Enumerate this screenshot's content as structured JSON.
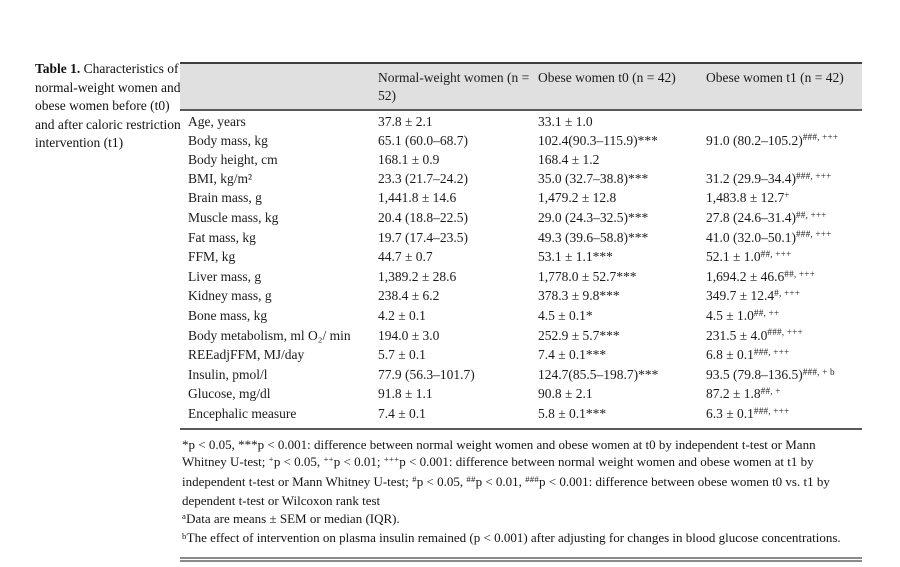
{
  "caption": {
    "label": "Table 1.",
    "text": " Characteristics of normal-weight women and obese women before (t0) and after caloric restriction intervention (t1)"
  },
  "table": {
    "header": {
      "col0": "",
      "col1": "Normal-weight women (n = 52)",
      "col2": "Obese women t0 (n = 42)",
      "col3": "Obese women t1 (n = 42)"
    },
    "rows": [
      {
        "label": "Age, years",
        "nw": "37.8 ± 2.1",
        "t0": "33.1 ± 1.0",
        "t1": "",
        "t1_sup": ""
      },
      {
        "label": "Body mass, kg",
        "nw": "65.1 (60.0–68.7)",
        "t0": "102.4(90.3–115.9)***",
        "t1": "91.0 (80.2–105.2)",
        "t1_sup": "###, +++"
      },
      {
        "label": "Body height, cm",
        "nw": "168.1 ± 0.9",
        "t0": "168.4 ± 1.2",
        "t1": "",
        "t1_sup": ""
      },
      {
        "label": "BMI, kg/m²",
        "nw": "23.3 (21.7–24.2)",
        "t0": "35.0 (32.7–38.8)***",
        "t1": "31.2 (29.9–34.4)",
        "t1_sup": "###, +++"
      },
      {
        "label": "Brain mass, g",
        "nw": "1,441.8 ± 14.6",
        "t0": "1,479.2 ± 12.8",
        "t1": "1,483.8 ± 12.7",
        "t1_sup": "+"
      },
      {
        "label": "Muscle mass, kg",
        "nw": "20.4 (18.8–22.5)",
        "t0": "29.0 (24.3–32.5)***",
        "t1": "27.8 (24.6–31.4)",
        "t1_sup": "##, +++"
      },
      {
        "label": "Fat mass, kg",
        "nw": "19.7 (17.4–23.5)",
        "t0": "49.3 (39.6–58.8)***",
        "t1": "41.0 (32.0–50.1)",
        "t1_sup": "###, +++"
      },
      {
        "label": "FFM, kg",
        "nw": "44.7 ± 0.7",
        "t0": "53.1 ± 1.1***",
        "t1": "52.1 ± 1.0",
        "t1_sup": "##, +++"
      },
      {
        "label": "Liver mass, g",
        "nw": "1,389.2 ± 28.6",
        "t0": "1,778.0 ± 52.7***",
        "t1": "1,694.2 ± 46.6",
        "t1_sup": "##, +++"
      },
      {
        "label": "Kidney mass, g",
        "nw": "238.4 ± 6.2",
        "t0": "378.3 ± 9.8***",
        "t1": "349.7 ± 12.4",
        "t1_sup": "#, +++"
      },
      {
        "label": "Bone mass, kg",
        "nw": "4.2 ± 0.1",
        "t0": "4.5 ± 0.1*",
        "t1": "4.5 ± 1.0",
        "t1_sup": "##, ++"
      },
      {
        "label": "Body metabolism, ml O₂/ min",
        "nw": "194.0 ± 3.0",
        "t0": "252.9 ± 5.7***",
        "t1": "231.5 ± 4.0",
        "t1_sup": "###, +++"
      },
      {
        "label": "REEadjFFM, MJ/day",
        "nw": "5.7 ± 0.1",
        "t0": "7.4 ± 0.1***",
        "t1": "6.8 ± 0.1",
        "t1_sup": "###, +++"
      },
      {
        "label": "Insulin, pmol/l",
        "nw": "77.9 (56.3–101.7)",
        "t0": "124.7(85.5–198.7)***",
        "t1": "93.5 (79.8–136.5)",
        "t1_sup": "###, + b"
      },
      {
        "label": "Glucose, mg/dl",
        "nw": "91.8 ± 1.1",
        "t0": "90.8 ± 2.1",
        "t1": "87.2 ± 1.8",
        "t1_sup": "##, +"
      },
      {
        "label": "Encephalic measure",
        "nw": "7.4 ± 0.1",
        "t0": "5.8 ± 0.1***",
        "t1": "6.3 ± 0.1",
        "t1_sup": "###, +++"
      }
    ]
  },
  "footnotes": [
    [
      {
        "t": "*p < 0.05, ***p < 0.001: difference between normal weight women and obese women at t0 by independent t-test or Mann Whitney U-test; "
      },
      {
        "t": "+",
        "sup": true
      },
      {
        "t": "p < 0.05, "
      },
      {
        "t": "++",
        "sup": true
      },
      {
        "t": "p < 0.01; "
      },
      {
        "t": "+++",
        "sup": true
      },
      {
        "t": "p < 0.001: difference between normal weight women and obese women at t1 by independent t-test or Mann Whitney U-test; "
      },
      {
        "t": "#",
        "sup": true
      },
      {
        "t": "p < 0.05, "
      },
      {
        "t": "##",
        "sup": true
      },
      {
        "t": "p < 0.01, "
      },
      {
        "t": "###",
        "sup": true
      },
      {
        "t": "p < 0.001: difference between obese women t0 vs. t1 by dependent t-test or Wilcoxon rank test"
      }
    ],
    [
      {
        "t": "a",
        "sup": true
      },
      {
        "t": "Data are means ± SEM or median (IQR)."
      }
    ],
    [
      {
        "t": "b",
        "sup": true
      },
      {
        "t": "The effect of intervention on plasma insulin remained (p < 0.001) after adjusting for changes in blood glucose concentrations."
      }
    ]
  ]
}
